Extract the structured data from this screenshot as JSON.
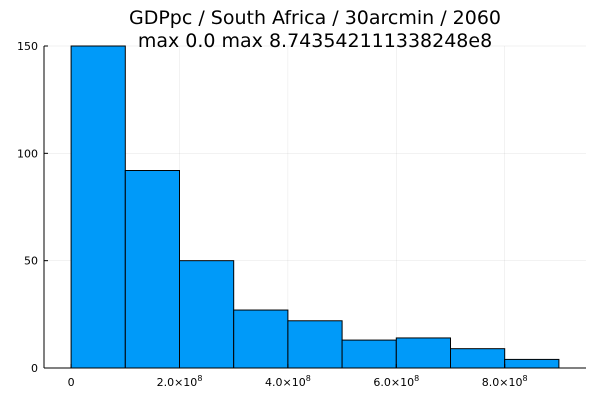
{
  "chart_data": {
    "type": "bar",
    "title_line1": "GDPpc / South Africa / 30arcmin / 2060",
    "title_line2": "max 0.0  max 8.743542111338248e8",
    "bins": [
      {
        "x0": 0,
        "x1": 100000000,
        "value": 150
      },
      {
        "x0": 100000000,
        "x1": 200000000,
        "value": 92
      },
      {
        "x0": 200000000,
        "x1": 300000000,
        "value": 50
      },
      {
        "x0": 300000000,
        "x1": 400000000,
        "value": 27
      },
      {
        "x0": 400000000,
        "x1": 500000000,
        "value": 22
      },
      {
        "x0": 500000000,
        "x1": 600000000,
        "value": 13
      },
      {
        "x0": 600000000,
        "x1": 700000000,
        "value": 14
      },
      {
        "x0": 700000000,
        "x1": 800000000,
        "value": 9
      },
      {
        "x0": 800000000,
        "x1": 900000000,
        "value": 4
      }
    ],
    "xlim": [
      -50000000,
      950000000
    ],
    "ylim": [
      0,
      150
    ],
    "x_ticks": [
      {
        "value": 0,
        "mantissa": "0",
        "exp": ""
      },
      {
        "value": 200000000,
        "mantissa": "2.0×10",
        "exp": "8"
      },
      {
        "value": 400000000,
        "mantissa": "4.0×10",
        "exp": "8"
      },
      {
        "value": 600000000,
        "mantissa": "6.0×10",
        "exp": "8"
      },
      {
        "value": 800000000,
        "mantissa": "8.0×10",
        "exp": "8"
      }
    ],
    "y_ticks": [
      {
        "value": 0,
        "label": "0"
      },
      {
        "value": 50,
        "label": "50"
      },
      {
        "value": 100,
        "label": "100"
      },
      {
        "value": 150,
        "label": "150"
      }
    ],
    "grid": true,
    "legend": false,
    "bar_color": "#009af9",
    "bar_edge_color": "#000000"
  }
}
